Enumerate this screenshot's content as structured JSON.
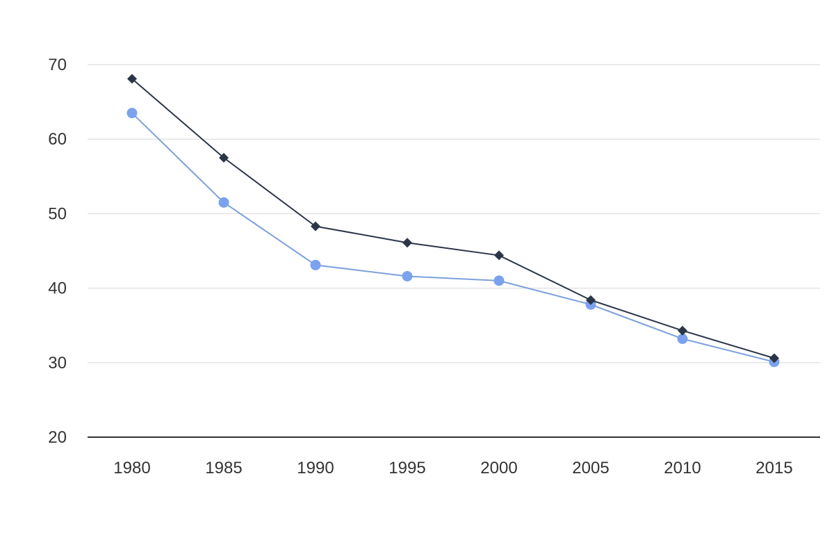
{
  "chart_data": {
    "type": "line",
    "title": "",
    "xlabel": "",
    "ylabel": "",
    "x": [
      "1980",
      "1985",
      "1990",
      "1995",
      "2000",
      "2005",
      "2010",
      "2015"
    ],
    "ylim": [
      20,
      70
    ],
    "yticks": [
      20,
      30,
      40,
      50,
      60,
      70
    ],
    "grid": true,
    "legend": "none",
    "series": [
      {
        "marker": "diamond",
        "color": "#2b3548",
        "values": [
          68.1,
          57.5,
          48.3,
          46.1,
          44.4,
          38.4,
          34.3,
          30.6
        ]
      },
      {
        "marker": "circle",
        "color": "#7aa2ee",
        "line_color": "#7ca0dc",
        "values": [
          63.5,
          51.5,
          43.1,
          41.6,
          41.0,
          37.8,
          33.2,
          30.1
        ]
      }
    ]
  }
}
